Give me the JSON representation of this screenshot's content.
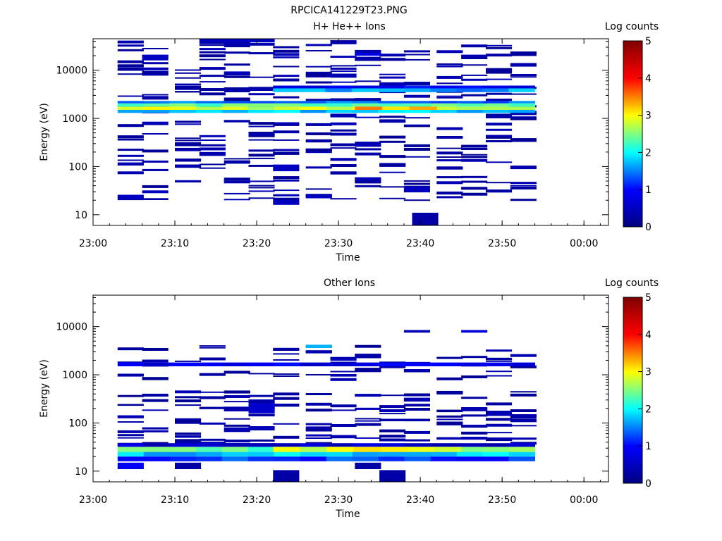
{
  "figure": {
    "title": "RPCICA141229T23.PNG"
  },
  "colorbar": {
    "label": "Log counts",
    "range": [
      0,
      5
    ],
    "ticks": [
      "0",
      "1",
      "2",
      "3",
      "4",
      "5"
    ],
    "colormap": [
      "#000080",
      "#0000ff",
      "#00ffff",
      "#ffff00",
      "#ff0000",
      "#800000"
    ]
  },
  "chart_data": [
    {
      "type": "heatmap",
      "title": "H+ He++ Ions",
      "xlabel": "Time",
      "ylabel": "Energy (eV)",
      "y_scale": "log",
      "xlim": [
        "23:00",
        "00:03"
      ],
      "ylim": [
        6,
        45000
      ],
      "x_ticks": [
        "23:00",
        "23:10",
        "23:20",
        "23:30",
        "23:40",
        "23:50",
        "00:00"
      ],
      "y_ticks": [
        "10",
        "100",
        "1000",
        "10000"
      ],
      "time_bins": [
        "23:03",
        "23:06",
        "23:10",
        "23:13",
        "23:16",
        "23:19",
        "23:22",
        "23:26",
        "23:29",
        "23:32",
        "23:35",
        "23:38",
        "23:42",
        "23:45",
        "23:48",
        "23:51"
      ],
      "bin_width_minutes": 3.2,
      "bands": [
        {
          "t0": "23:03",
          "t1": "23:54",
          "e_low": 1500,
          "e_high": 1750,
          "log_counts": 2.8
        },
        {
          "t0": "23:03",
          "t1": "23:54",
          "e_low": 1750,
          "e_high": 2050,
          "log_counts": 2.3
        },
        {
          "t0": "23:03",
          "t1": "23:54",
          "e_low": 1300,
          "e_high": 1500,
          "log_counts": 1.8
        },
        {
          "t0": "23:03",
          "t1": "23:54",
          "e_low": 2050,
          "e_high": 2300,
          "log_counts": 1.4
        },
        {
          "t0": "23:32",
          "t1": "23:42",
          "e_low": 1500,
          "e_high": 1750,
          "log_counts": 3.3
        },
        {
          "t0": "23:22",
          "t1": "23:54",
          "e_low": 3500,
          "e_high": 4200,
          "log_counts": 1.6
        },
        {
          "t0": "23:22",
          "t1": "23:54",
          "e_low": 4200,
          "e_high": 4800,
          "log_counts": 0.9
        }
      ],
      "cells": [
        {
          "t": "23:39",
          "e_low": 6,
          "e_high": 11,
          "log_counts": 0.3
        },
        {
          "t": "23:03",
          "e_low": 21,
          "e_high": 26,
          "log_counts": 0.5
        },
        {
          "t": "23:06",
          "e_low": 28,
          "e_high": 32,
          "log_counts": 0.5
        },
        {
          "t": "23:22",
          "e_low": 16,
          "e_high": 20,
          "log_counts": 0.5
        },
        {
          "t": "23:26",
          "e_low": 22,
          "e_high": 26,
          "log_counts": 0.5
        },
        {
          "t": "23:22",
          "e_low": 80,
          "e_high": 110,
          "log_counts": 0.5
        },
        {
          "t": "23:38",
          "e_low": 30,
          "e_high": 38,
          "log_counts": 0.5
        },
        {
          "t": "23:29",
          "e_low": 1050,
          "e_high": 1250,
          "log_counts": 0.4
        },
        {
          "t": "23:29",
          "e_low": 7000,
          "e_high": 8500,
          "log_counts": 0.4
        },
        {
          "t": "23:32",
          "e_low": 20000,
          "e_high": 23000,
          "log_counts": 0.8
        },
        {
          "t": "23:06",
          "e_low": 16000,
          "e_high": 21000,
          "log_counts": 0.5
        },
        {
          "t": "23:13",
          "e_low": 38000,
          "e_high": 45000,
          "log_counts": 0.5
        },
        {
          "t": "23:16",
          "e_low": 38000,
          "e_high": 45000,
          "log_counts": 0.5
        },
        {
          "t": "23:19",
          "e_low": 38000,
          "e_high": 45000,
          "log_counts": 0.5
        }
      ]
    },
    {
      "type": "heatmap",
      "title": "Other Ions",
      "xlabel": "Time",
      "ylabel": "Energy (eV)",
      "y_scale": "log",
      "xlim": [
        "23:00",
        "00:03"
      ],
      "ylim": [
        6,
        45000
      ],
      "x_ticks": [
        "23:00",
        "23:10",
        "23:20",
        "23:30",
        "23:40",
        "23:50",
        "00:00"
      ],
      "y_ticks": [
        "10",
        "100",
        "1000",
        "10000"
      ],
      "time_bins": [
        "23:03",
        "23:06",
        "23:10",
        "23:13",
        "23:16",
        "23:19",
        "23:22",
        "23:26",
        "23:29",
        "23:32",
        "23:35",
        "23:38",
        "23:42",
        "23:45",
        "23:48",
        "23:51"
      ],
      "bin_width_minutes": 3.2,
      "bands": [
        {
          "t0": "23:03",
          "t1": "23:54",
          "e_low": 25,
          "e_high": 32,
          "log_counts": 2.4
        },
        {
          "t0": "23:03",
          "t1": "23:54",
          "e_low": 20,
          "e_high": 25,
          "log_counts": 1.8
        },
        {
          "t0": "23:03",
          "t1": "23:54",
          "e_low": 16,
          "e_high": 20,
          "log_counts": 1.2
        },
        {
          "t0": "23:03",
          "t1": "23:54",
          "e_low": 32,
          "e_high": 38,
          "log_counts": 0.6
        },
        {
          "t0": "23:03",
          "t1": "23:54",
          "e_low": 1500,
          "e_high": 1800,
          "log_counts": 0.8
        },
        {
          "t0": "23:22",
          "t1": "23:45",
          "e_low": 25,
          "e_high": 32,
          "log_counts": 2.9
        }
      ],
      "cells": [
        {
          "t": "23:03",
          "e_low": 11,
          "e_high": 15,
          "log_counts": 0.9
        },
        {
          "t": "23:10",
          "e_low": 11,
          "e_high": 15,
          "log_counts": 0.3
        },
        {
          "t": "23:22",
          "e_low": 6,
          "e_high": 10.5,
          "log_counts": 0.3
        },
        {
          "t": "23:32",
          "e_low": 11,
          "e_high": 15,
          "log_counts": 0.3
        },
        {
          "t": "23:35",
          "e_low": 6,
          "e_high": 10.5,
          "log_counts": 0.3
        },
        {
          "t": "23:19",
          "e_low": 160,
          "e_high": 260,
          "log_counts": 0.6
        },
        {
          "t": "23:48",
          "e_low": 140,
          "e_high": 180,
          "log_counts": 0.4
        },
        {
          "t": "23:45",
          "e_low": 7500,
          "e_high": 8500,
          "log_counts": 0.7
        },
        {
          "t": "23:38",
          "e_low": 7500,
          "e_high": 8500,
          "log_counts": 0.4
        },
        {
          "t": "23:26",
          "e_low": 3600,
          "e_high": 4200,
          "log_counts": 1.7
        }
      ]
    }
  ]
}
